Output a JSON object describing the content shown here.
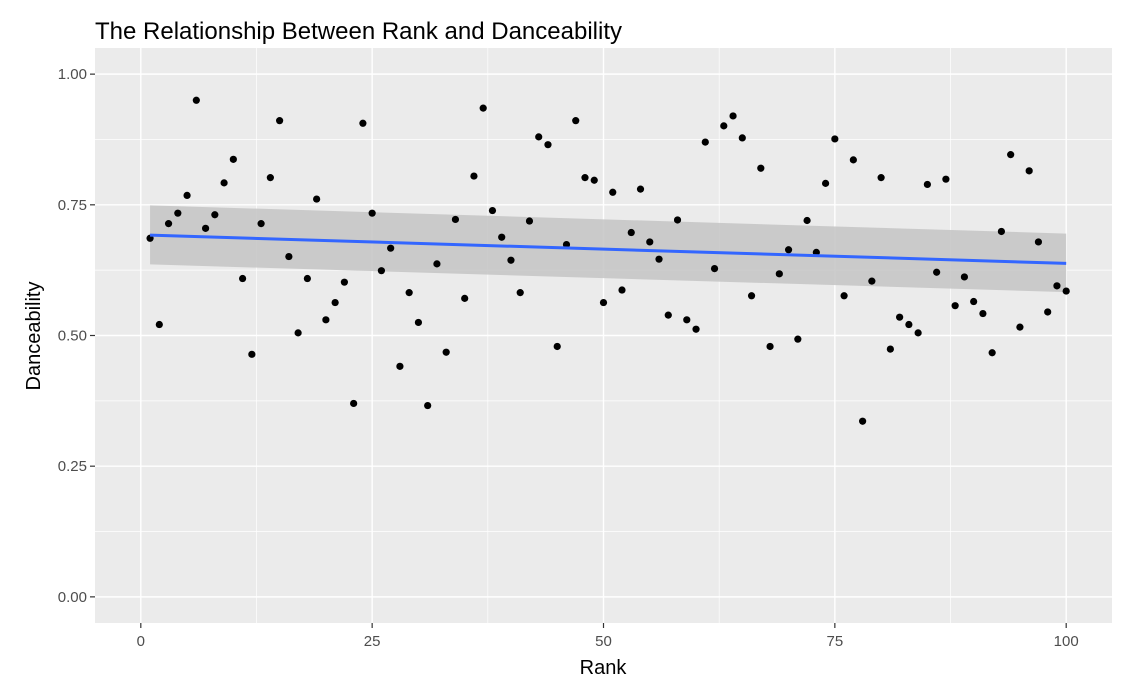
{
  "chart_data": {
    "type": "scatter",
    "title": "The Relationship Between Rank and Danceability",
    "xlabel": "Rank",
    "ylabel": "Danceability",
    "xlim": [
      -4.95,
      104.95
    ],
    "ylim": [
      0,
      1.0
    ],
    "x_ticks": [
      0,
      25,
      50,
      75,
      100
    ],
    "x_tick_labels": [
      "0",
      "25",
      "50",
      "75",
      "100"
    ],
    "y_ticks": [
      0,
      0.25,
      0.5,
      0.75,
      1.0
    ],
    "y_tick_labels": [
      "0.00",
      "0.25",
      "0.50",
      "0.75",
      "1.00"
    ],
    "grid": true,
    "legend": "none",
    "colors": {
      "panel": "#ebebeb",
      "grid": "#ffffff",
      "points": "#000000",
      "trend": "#3366ff",
      "band": "#c4c4c4"
    },
    "points": {
      "x": [
        1,
        2,
        3,
        4,
        5,
        6,
        7,
        8,
        9,
        10,
        11,
        12,
        13,
        14,
        15,
        16,
        17,
        18,
        19,
        20,
        21,
        22,
        23,
        24,
        25,
        26,
        27,
        28,
        29,
        30,
        31,
        32,
        33,
        34,
        35,
        36,
        37,
        38,
        39,
        40,
        41,
        42,
        43,
        44,
        45,
        46,
        47,
        48,
        49,
        50,
        51,
        52,
        53,
        54,
        55,
        56,
        57,
        58,
        59,
        60,
        61,
        62,
        63,
        64,
        65,
        66,
        67,
        68,
        69,
        70,
        71,
        72,
        73,
        74,
        75,
        76,
        77,
        78,
        79,
        80,
        81,
        82,
        83,
        84,
        85,
        86,
        87,
        88,
        89,
        90,
        91,
        92,
        93,
        94,
        95,
        96,
        97,
        98,
        99,
        100
      ],
      "y": [
        0.686,
        0.521,
        0.714,
        0.734,
        0.768,
        0.95,
        0.705,
        0.731,
        0.792,
        0.837,
        0.609,
        0.464,
        0.714,
        0.802,
        0.911,
        0.651,
        0.505,
        0.609,
        0.761,
        0.53,
        0.563,
        0.602,
        0.37,
        0.906,
        0.734,
        0.624,
        0.667,
        0.441,
        0.582,
        0.525,
        0.366,
        0.637,
        0.468,
        0.722,
        0.571,
        0.805,
        0.935,
        0.739,
        0.688,
        0.644,
        0.582,
        0.719,
        0.88,
        0.865,
        0.479,
        0.674,
        0.911,
        0.802,
        0.797,
        0.563,
        0.774,
        0.587,
        0.697,
        0.78,
        0.679,
        0.646,
        0.539,
        0.721,
        0.53,
        0.512,
        0.87,
        0.628,
        0.901,
        0.92,
        0.878,
        0.576,
        0.82,
        0.479,
        0.618,
        0.664,
        0.493,
        0.72,
        0.659,
        0.791,
        0.876,
        0.576,
        0.836,
        0.336,
        0.604,
        0.802,
        0.474,
        0.535,
        0.521,
        0.505,
        0.789,
        0.621,
        0.799,
        0.557,
        0.612,
        0.565,
        0.542,
        0.467,
        0.699,
        0.846,
        0.516,
        0.815,
        0.679,
        0.545,
        0.595,
        0.585
      ]
    },
    "trend": {
      "x": [
        1,
        100
      ],
      "y": [
        0.692,
        0.638
      ],
      "band_lower": [
        0.636,
        0.583
      ],
      "band_upper": [
        0.749,
        0.695
      ]
    }
  }
}
